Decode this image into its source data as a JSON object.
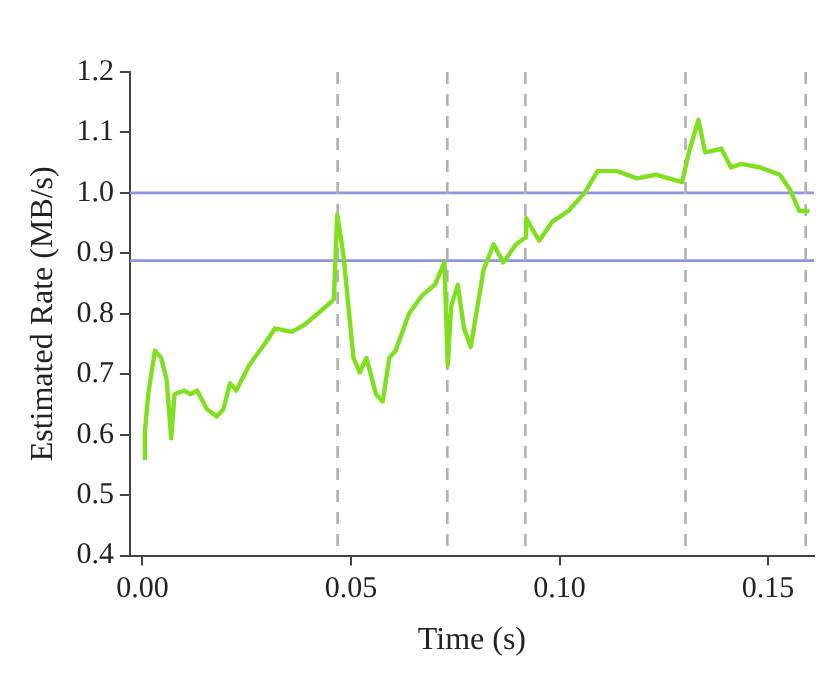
{
  "chart_data": {
    "type": "line",
    "xlabel": "Time (s)",
    "ylabel": "Estimated Rate (MB/s)",
    "xlim": [
      -0.003,
      0.161
    ],
    "ylim": [
      0.4,
      1.2
    ],
    "xticks": [
      {
        "value": 0,
        "label": "0.00"
      },
      {
        "value": 0.05,
        "label": "0.05"
      },
      {
        "value": 0.1,
        "label": "0.10"
      },
      {
        "value": 0.15,
        "label": "0.15"
      }
    ],
    "yticks": [
      0.4,
      0.5,
      0.6,
      0.7,
      0.8,
      0.9,
      {
        "value": 1,
        "label": "1.0"
      },
      1.1,
      1.2
    ],
    "grid": false,
    "legend": false,
    "marker": "none",
    "line_style": "solid",
    "series": [
      {
        "color": "#80e020",
        "x": [
          0.0006,
          0.0006,
          0.0014,
          0.003,
          0.0045,
          0.0058,
          0.0069,
          0.0077,
          0.01,
          0.0116,
          0.0131,
          0.0155,
          0.0178,
          0.0194,
          0.021,
          0.0225,
          0.0256,
          0.0295,
          0.0318,
          0.0358,
          0.0389,
          0.042,
          0.0459,
          0.0467,
          0.0482,
          0.0506,
          0.0521,
          0.0537,
          0.056,
          0.0576,
          0.0592,
          0.0607,
          0.0639,
          0.067,
          0.0701,
          0.0724,
          0.0732,
          0.074,
          0.0756,
          0.0771,
          0.0787,
          0.0818,
          0.0842,
          0.0865,
          0.0896,
          0.092,
          0.092,
          0.0951,
          0.0982,
          0.1021,
          0.106,
          0.1091,
          0.1138,
          0.1185,
          0.1232,
          0.1294,
          0.131,
          0.1333,
          0.1349,
          0.1388,
          0.1411,
          0.1435,
          0.1482,
          0.1528,
          0.1552,
          0.1575,
          0.1599
        ],
        "values": [
          0.558,
          0.606,
          0.667,
          0.739,
          0.727,
          0.691,
          0.594,
          0.667,
          0.673,
          0.667,
          0.673,
          0.642,
          0.63,
          0.642,
          0.685,
          0.673,
          0.715,
          0.752,
          0.776,
          0.77,
          0.782,
          0.8,
          0.824,
          0.964,
          0.897,
          0.727,
          0.703,
          0.727,
          0.667,
          0.655,
          0.727,
          0.739,
          0.8,
          0.83,
          0.848,
          0.885,
          0.715,
          0.812,
          0.848,
          0.776,
          0.745,
          0.873,
          0.915,
          0.885,
          0.915,
          0.927,
          0.958,
          0.921,
          0.952,
          0.97,
          1.0,
          1.036,
          1.036,
          1.024,
          1.03,
          1.018,
          1.067,
          1.121,
          1.067,
          1.073,
          1.042,
          1.048,
          1.042,
          1.03,
          1.006,
          0.97,
          0.97
        ]
      }
    ],
    "ref_lines": [
      {
        "axis": "y",
        "value": 1.0,
        "color": "#8c96e0",
        "line_style": "solid"
      },
      {
        "axis": "y",
        "value": 0.888,
        "color": "#8c96e0",
        "line_style": "solid"
      },
      {
        "axis": "x",
        "value": 0.0468,
        "color": "#b0b0b0",
        "line_style": "dashed"
      },
      {
        "axis": "x",
        "value": 0.0731,
        "color": "#b0b0b0",
        "line_style": "dashed"
      },
      {
        "axis": "x",
        "value": 0.0918,
        "color": "#b0b0b0",
        "line_style": "dashed"
      },
      {
        "axis": "x",
        "value": 0.1302,
        "color": "#b0b0b0",
        "line_style": "dashed"
      },
      {
        "axis": "x",
        "value": 0.159,
        "color": "#b0b0b0",
        "line_style": "dashed"
      }
    ]
  }
}
